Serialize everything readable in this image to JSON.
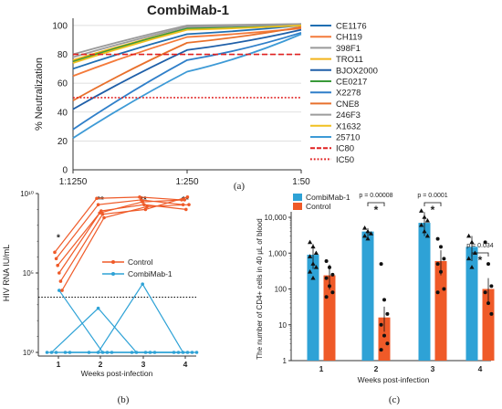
{
  "chart_data": [
    {
      "panel": "(a)",
      "type": "line",
      "title": "CombiMab-1",
      "xlabel": "",
      "ylabel": "% Neutralization",
      "ylim": [
        0,
        105
      ],
      "yticks": [
        0,
        20,
        40,
        60,
        80,
        100
      ],
      "x": [
        "1:1250",
        "1:250",
        "1:50"
      ],
      "legend_position": "right",
      "series": [
        {
          "name": "CE1176",
          "color": "#1f6fb2",
          "values": [
            70,
            94,
            100
          ]
        },
        {
          "name": "CH119",
          "color": "#f47a3a",
          "values": [
            65,
            92,
            98
          ]
        },
        {
          "name": "398F1",
          "color": "#9a9a9a",
          "values": [
            80,
            100,
            101
          ]
        },
        {
          "name": "TRO11",
          "color": "#f2b31a",
          "values": [
            76,
            98,
            100
          ]
        },
        {
          "name": "BJOX2000",
          "color": "#1f5fa8",
          "values": [
            42,
            83,
            97
          ]
        },
        {
          "name": "CE0217",
          "color": "#3a9a3a",
          "values": [
            75,
            98,
            100
          ]
        },
        {
          "name": "X2278",
          "color": "#2f7fc9",
          "values": [
            28,
            76,
            95
          ]
        },
        {
          "name": "CNE8",
          "color": "#e8702c",
          "values": [
            48,
            88,
            99
          ]
        },
        {
          "name": "246F3",
          "color": "#9c9c9c",
          "values": [
            78,
            99,
            101
          ]
        },
        {
          "name": "X1632",
          "color": "#f0c020",
          "values": [
            74,
            97,
            100
          ]
        },
        {
          "name": "25710",
          "color": "#3d9ad6",
          "values": [
            22,
            68,
            94
          ]
        },
        {
          "name": "IC80",
          "color": "#e02020",
          "dash": "dashed",
          "values": [
            80,
            80,
            80
          ]
        },
        {
          "name": "IC50",
          "color": "#e02020",
          "dash": "dotted",
          "values": [
            50,
            50,
            50
          ]
        }
      ]
    },
    {
      "panel": "(b)",
      "type": "line",
      "title": "",
      "xlabel": "Weeks post-infection",
      "ylabel": "HIV RNA IU/mL",
      "yscale": "log",
      "ylim": [
        1,
        10000000000
      ],
      "ytick_labels": [
        "10⁰",
        "10⁵",
        "10¹⁰"
      ],
      "x": [
        1,
        2,
        3,
        4
      ],
      "threshold": 3000,
      "significance": [
        "*",
        "**",
        "**",
        "**"
      ],
      "legend": [
        "Control",
        "CombiMab-1"
      ],
      "groups": [
        {
          "name": "Control",
          "color": "#ef5a28",
          "subjects": [
            [
              2000000,
              5000000000,
              6000000000,
              4000000000
            ],
            [
              800000,
              2000000000,
              4000000000,
              2000000000
            ],
            [
              300000,
              600000000,
              3000000000,
              4000000000
            ],
            [
              100000,
              800000000,
              2000000000,
              1000000000
            ],
            [
              30000,
              500000000,
              1000000000,
              6000000000
            ],
            [
              8000,
              300000000,
              1500000000,
              2000000000
            ]
          ]
        },
        {
          "name": "CombiMab-1",
          "color": "#2ea2d6",
          "subjects": [
            [
              1,
              1,
              1,
              1
            ],
            [
              1,
              600,
              1,
              1
            ],
            [
              1,
              1,
              20000,
              1
            ],
            [
              8000,
              1,
              1,
              1
            ],
            [
              1,
              1,
              1,
              1
            ],
            [
              1,
              1,
              1,
              1
            ]
          ]
        }
      ]
    },
    {
      "panel": "(c)",
      "type": "bar",
      "title": "",
      "xlabel": "Weeks post-infection",
      "ylabel": "The number of CD4+ cells in 40 μL of blood",
      "yscale": "log",
      "ylim": [
        1,
        10000
      ],
      "ytick_labels": [
        "1",
        "10",
        "100",
        "1,000",
        "10,000"
      ],
      "categories": [
        "1",
        "2",
        "3",
        "4"
      ],
      "legend_position": "top-left",
      "series": [
        {
          "name": "CombiMab-1",
          "color": "#2ea2d6",
          "values": [
            900,
            4000,
            7000,
            1500
          ],
          "points": [
            [
              2000,
              1500,
              1000,
              800,
              500,
              400,
              300,
              200
            ],
            [
              5000,
              4000,
              3500,
              3000,
              2500
            ],
            [
              15000,
              10000,
              8000,
              6000,
              4000,
              3000
            ],
            [
              3000,
              2000,
              1000,
              700,
              400
            ]
          ]
        },
        {
          "name": "Control",
          "color": "#ef5a28",
          "values": [
            240,
            16,
            600,
            100
          ],
          "points": [
            [
              600,
              400,
              250,
              200,
              120,
              80,
              60
            ],
            [
              500,
              50,
              20,
              10,
              5,
              3,
              2
            ],
            [
              2500,
              1500,
              700,
              500,
              300,
              100,
              80
            ],
            [
              2000,
              500,
              120,
              80,
              40,
              20
            ]
          ]
        }
      ],
      "p_values": [
        "",
        "p = 0.00008",
        "p = 0.0001",
        "p = 0.034"
      ],
      "significance": [
        "",
        "*",
        "*",
        "*"
      ]
    }
  ],
  "panel_labels": [
    "(a)",
    "(b)",
    "(c)"
  ]
}
